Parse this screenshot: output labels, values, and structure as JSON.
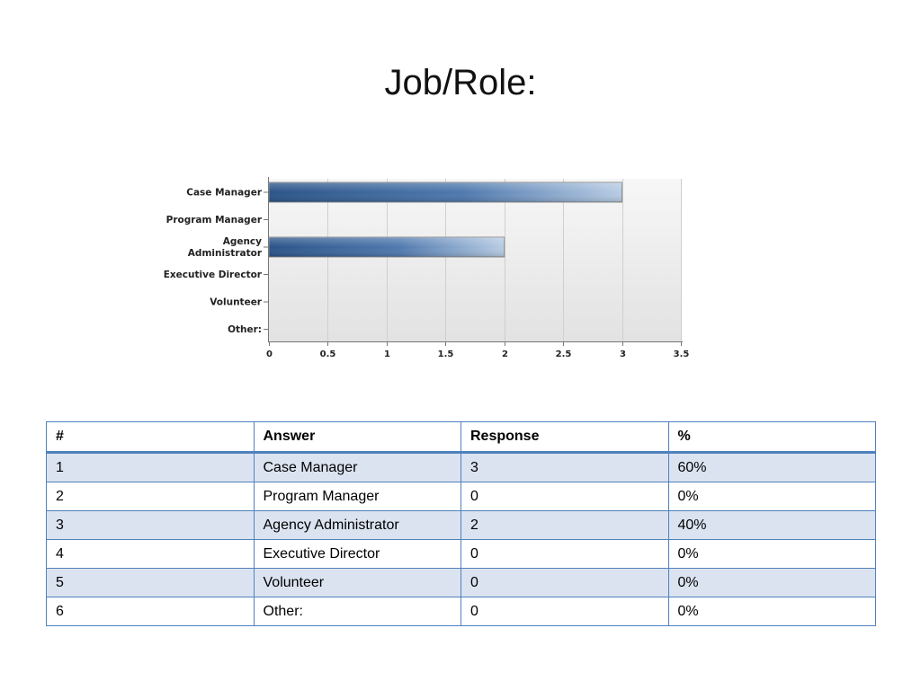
{
  "title": "Job/Role:",
  "chart_data": {
    "type": "bar",
    "orientation": "horizontal",
    "categories": [
      "Case Manager",
      "Program Manager",
      "Agency Administrator",
      "Executive Director",
      "Volunteer",
      "Other:"
    ],
    "category_labels": [
      [
        "Case Manager"
      ],
      [
        "Program Manager"
      ],
      [
        "Agency",
        "Administrator"
      ],
      [
        "Executive Director"
      ],
      [
        "Volunteer"
      ],
      [
        "Other:"
      ]
    ],
    "values": [
      3,
      0,
      2,
      0,
      0,
      0
    ],
    "xlim": [
      0,
      3.5
    ],
    "xticks": [
      0,
      0.5,
      1,
      1.5,
      2,
      2.5,
      3,
      3.5
    ],
    "xtick_labels": [
      "0",
      "0.5",
      "1",
      "1.5",
      "2",
      "2.5",
      "3",
      "3.5"
    ],
    "grid": "vertical",
    "bar_color": "#2f5a8f",
    "bar_highlight": "#b5c9e2"
  },
  "table": {
    "headers": [
      "#",
      "Answer",
      "Response",
      "%"
    ],
    "rows": [
      [
        "1",
        "Case Manager",
        "3",
        "60%"
      ],
      [
        "2",
        "Program Manager",
        "0",
        "0%"
      ],
      [
        "3",
        "Agency Administrator",
        "2",
        "40%"
      ],
      [
        "4",
        "Executive Director",
        "0",
        "0%"
      ],
      [
        "5",
        "Volunteer",
        "0",
        "0%"
      ],
      [
        "6",
        "Other:",
        "0",
        "0%"
      ]
    ],
    "border_color": "#4f81bd",
    "stripe_color": "#dbe3f0"
  }
}
